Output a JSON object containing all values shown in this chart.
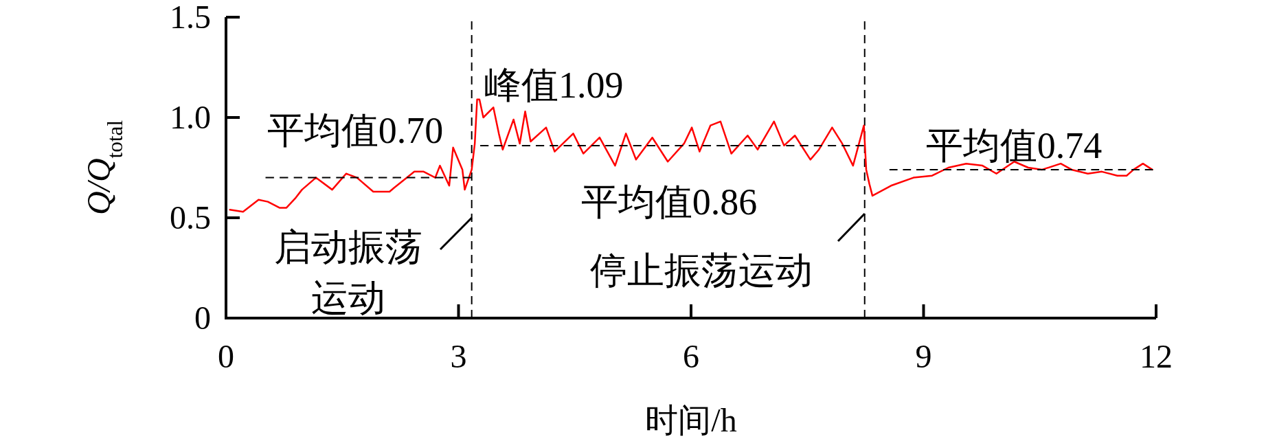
{
  "chart_data": {
    "type": "line",
    "xlabel": "时间/h",
    "ylabel": "Q/Q$_{total}$",
    "xlim": [
      0,
      12
    ],
    "xticks": [
      0,
      3,
      6,
      9,
      12
    ],
    "ylim": [
      0,
      1.5
    ],
    "yticks": [
      0,
      {
        "value": 0.5,
        "label": "0.5"
      },
      {
        "value": 1.0,
        "label": "1.0"
      },
      {
        "value": 1.5,
        "label": "1.5"
      }
    ],
    "grid": false,
    "marker": "none",
    "series": [
      {
        "color": "#ff0000",
        "line_style": "solid",
        "x": [
          0.05,
          0.22,
          0.42,
          0.54,
          0.69,
          0.78,
          0.9,
          0.98,
          1.16,
          1.37,
          1.55,
          1.69,
          1.9,
          2.11,
          2.17,
          2.43,
          2.55,
          2.7,
          2.76,
          2.88,
          2.93,
          3.05,
          3.08,
          3.17,
          3.21,
          3.24,
          3.27,
          3.32,
          3.45,
          3.52,
          3.57,
          3.71,
          3.79,
          3.86,
          3.93,
          4.13,
          4.24,
          4.48,
          4.61,
          4.82,
          5.02,
          5.16,
          5.29,
          5.5,
          5.7,
          5.91,
          6.01,
          6.11,
          6.25,
          6.38,
          6.52,
          6.73,
          6.86,
          7.07,
          7.2,
          7.34,
          7.54,
          7.65,
          7.82,
          7.95,
          8.09,
          8.23,
          8.26,
          8.3,
          8.34,
          8.58,
          8.87,
          9.11,
          9.32,
          9.55,
          9.76,
          9.94,
          10.17,
          10.35,
          10.53,
          10.77,
          10.91,
          11.12,
          11.3,
          11.5,
          11.62,
          11.71,
          11.83,
          11.95
        ],
        "values": [
          0.54,
          0.53,
          0.59,
          0.58,
          0.55,
          0.55,
          0.6,
          0.64,
          0.7,
          0.64,
          0.72,
          0.7,
          0.63,
          0.63,
          0.65,
          0.73,
          0.73,
          0.7,
          0.76,
          0.66,
          0.85,
          0.74,
          0.64,
          0.74,
          0.87,
          1.09,
          1.09,
          1.0,
          1.05,
          0.92,
          0.84,
          0.99,
          0.87,
          1.03,
          0.88,
          0.95,
          0.83,
          0.92,
          0.82,
          0.9,
          0.76,
          0.92,
          0.79,
          0.9,
          0.78,
          0.87,
          0.95,
          0.83,
          0.96,
          0.98,
          0.82,
          0.91,
          0.84,
          0.98,
          0.86,
          0.91,
          0.79,
          0.84,
          0.95,
          0.87,
          0.76,
          0.96,
          0.74,
          0.67,
          0.61,
          0.66,
          0.7,
          0.71,
          0.75,
          0.77,
          0.76,
          0.72,
          0.78,
          0.75,
          0.74,
          0.77,
          0.74,
          0.72,
          0.73,
          0.71,
          0.71,
          0.74,
          0.77,
          0.74
        ]
      },
      {
        "color": "#000000",
        "line_style": "dashed",
        "x": [
          0.51,
          3.17
        ],
        "values": [
          0.7,
          0.7
        ]
      },
      {
        "color": "#000000",
        "line_style": "dashed",
        "x": [
          3.28,
          8.23
        ],
        "values": [
          0.86,
          0.86
        ]
      },
      {
        "color": "#000000",
        "line_style": "dashed",
        "x": [
          8.56,
          11.96
        ],
        "values": [
          0.74,
          0.74
        ]
      }
    ],
    "ref_lines": [
      {
        "axis": "x",
        "value": 3.17,
        "color": "#000000",
        "line_style": "dashed"
      },
      {
        "axis": "x",
        "value": 8.24,
        "color": "#000000",
        "line_style": "dashed"
      }
    ],
    "annotations": [
      "平均值0.70",
      "峰值1.09",
      "平均值0.86",
      "平均值0.74",
      "启动振荡",
      "运动",
      "停止振荡运动"
    ]
  }
}
